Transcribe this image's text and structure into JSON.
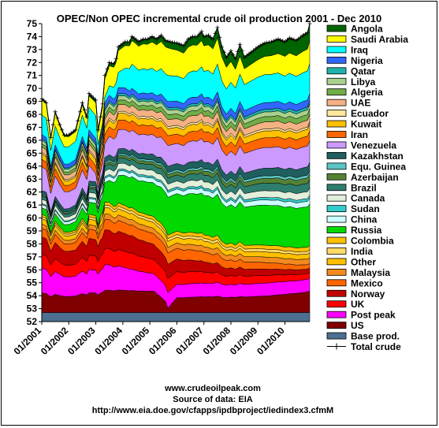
{
  "chart_data": {
    "type": "area",
    "title": "OPEC/Non OPEC incremental crude oil production 2001 - Dec 2010",
    "ylim": [
      52,
      75
    ],
    "yticks": [
      52,
      53,
      54,
      55,
      56,
      57,
      58,
      59,
      60,
      61,
      62,
      63,
      64,
      65,
      66,
      67,
      68,
      69,
      70,
      71,
      72,
      73,
      74,
      75
    ],
    "xticks": [
      "01/2001",
      "01/2002",
      "01/2003",
      "01/2004",
      "01/2005",
      "01/2006",
      "01/2007",
      "01/2008",
      "01/2009",
      "01/2010"
    ],
    "n_months": 120,
    "grid": false,
    "legend_position": "right",
    "total_crude": {
      "name": "Total crude",
      "color": "#000000",
      "anchors": [
        [
          0,
          69.2
        ],
        [
          2,
          68.9
        ],
        [
          4,
          66.2
        ],
        [
          6,
          68.2
        ],
        [
          8,
          67.2
        ],
        [
          10,
          66.4
        ],
        [
          12,
          66.4
        ],
        [
          15,
          66.8
        ],
        [
          18,
          68.9
        ],
        [
          20,
          67.8
        ],
        [
          21,
          69.6
        ],
        [
          24,
          69.1
        ],
        [
          25,
          66.8
        ],
        [
          27,
          68.8
        ],
        [
          28,
          71.0
        ],
        [
          30,
          72.0
        ],
        [
          32,
          71.9
        ],
        [
          33,
          72.3
        ],
        [
          34,
          73.2
        ],
        [
          37,
          73.6
        ],
        [
          39,
          73.6
        ],
        [
          40,
          74.0
        ],
        [
          41,
          73.9
        ],
        [
          43,
          73.6
        ],
        [
          45,
          73.8
        ],
        [
          47,
          73.8
        ],
        [
          49,
          74.0
        ],
        [
          51,
          73.8
        ],
        [
          53,
          74.1
        ],
        [
          55,
          73.7
        ],
        [
          57,
          73.6
        ],
        [
          60,
          73.5
        ],
        [
          63,
          73.3
        ],
        [
          65,
          73.8
        ],
        [
          67,
          74.0
        ],
        [
          69,
          74.0
        ],
        [
          70,
          74.2
        ],
        [
          71,
          74.4
        ],
        [
          72,
          74.0
        ],
        [
          74,
          74.1
        ],
        [
          76,
          73.8
        ],
        [
          78,
          74.7
        ],
        [
          80,
          73.2
        ],
        [
          82,
          72.4
        ],
        [
          84,
          72.9
        ],
        [
          86,
          72.3
        ],
        [
          88,
          73.4
        ],
        [
          90,
          72.4
        ],
        [
          93,
          72.8
        ],
        [
          96,
          73.2
        ],
        [
          99,
          73.5
        ],
        [
          102,
          73.6
        ],
        [
          105,
          73.8
        ],
        [
          108,
          73.6
        ],
        [
          110,
          73.9
        ],
        [
          113,
          73.7
        ],
        [
          116,
          74.1
        ],
        [
          118,
          74.3
        ],
        [
          119,
          75.0
        ]
      ]
    },
    "series": [
      {
        "name": "Base prod.",
        "color": "#4D6F91",
        "anchors": [
          [
            0,
            0.7
          ],
          [
            119,
            0.7
          ]
        ]
      },
      {
        "name": "US",
        "color": "#800000",
        "anchors": [
          [
            0,
            1.8
          ],
          [
            50,
            1.6
          ],
          [
            55,
            0.8
          ],
          [
            56,
            0.3
          ],
          [
            60,
            1.1
          ],
          [
            100,
            1.2
          ],
          [
            119,
            1.5
          ]
        ]
      },
      {
        "name": "Post peak",
        "color": "#FF00FF",
        "anchors": [
          [
            0,
            2.3
          ],
          [
            30,
            1.9
          ],
          [
            60,
            1.0
          ],
          [
            120,
            0.9
          ]
        ]
      },
      {
        "name": "UK",
        "color": "#FF0000",
        "anchors": [
          [
            0,
            1.3
          ],
          [
            40,
            1.2
          ],
          [
            80,
            0.7
          ],
          [
            120,
            0.4
          ]
        ]
      },
      {
        "name": "Norway",
        "color": "#C00000",
        "anchors": [
          [
            0,
            1.6
          ],
          [
            40,
            1.3
          ],
          [
            80,
            0.6
          ],
          [
            120,
            0.3
          ]
        ]
      },
      {
        "name": "Mexico",
        "color": "#FF6600",
        "anchors": [
          [
            0,
            0.8
          ],
          [
            60,
            0.8
          ],
          [
            120,
            0.3
          ]
        ]
      },
      {
        "name": "Malaysia",
        "color": "#F28A1E",
        "anchors": [
          [
            0,
            0.4
          ],
          [
            120,
            0.4
          ]
        ]
      },
      {
        "name": "Other",
        "color": "#FFC000",
        "anchors": [
          [
            0,
            0.5
          ],
          [
            120,
            0.35
          ]
        ]
      },
      {
        "name": "India",
        "color": "#FFD966",
        "anchors": [
          [
            0,
            0.2
          ],
          [
            120,
            0.2
          ]
        ]
      },
      {
        "name": "Colombia",
        "color": "#FFC000",
        "anchors": [
          [
            0,
            0.2
          ],
          [
            120,
            0.3
          ]
        ]
      },
      {
        "name": "Russia",
        "color": "#00D800",
        "anchors": [
          [
            0,
            0.6
          ],
          [
            24,
            1.1
          ],
          [
            36,
            2.2
          ],
          [
            60,
            2.8
          ],
          [
            90,
            2.9
          ],
          [
            120,
            2.9
          ]
        ]
      },
      {
        "name": "China",
        "color": "#CCFFFF",
        "anchors": [
          [
            0,
            0.3
          ],
          [
            120,
            0.4
          ]
        ]
      },
      {
        "name": "Sudan",
        "color": "#33CCCC",
        "anchors": [
          [
            0,
            0.1
          ],
          [
            120,
            0.2
          ]
        ]
      },
      {
        "name": "Canada",
        "color": "#E2EFDA",
        "anchors": [
          [
            0,
            0.4
          ],
          [
            120,
            0.5
          ]
        ]
      },
      {
        "name": "Brazil",
        "color": "#2E7D6E",
        "anchors": [
          [
            0,
            0.3
          ],
          [
            120,
            0.6
          ]
        ]
      },
      {
        "name": "Azerbaijan",
        "color": "#548235",
        "anchors": [
          [
            0,
            0.1
          ],
          [
            120,
            0.4
          ]
        ]
      },
      {
        "name": "Equ. Guinea",
        "color": "#5BC4C4",
        "anchors": [
          [
            0,
            0.1
          ],
          [
            120,
            0.2
          ]
        ]
      },
      {
        "name": "Kazakhstan",
        "color": "#1F5F5F",
        "anchors": [
          [
            0,
            0.3
          ],
          [
            120,
            0.6
          ]
        ]
      },
      {
        "name": "Venezuela",
        "color": "#CC99FF",
        "anchors": [
          [
            0,
            2.2
          ],
          [
            20,
            1.6
          ],
          [
            25,
            0.5
          ],
          [
            30,
            1.4
          ],
          [
            60,
            1.5
          ],
          [
            120,
            1.5
          ]
        ]
      },
      {
        "name": "Iran",
        "color": "#FF6600",
        "anchors": [
          [
            0,
            0.7
          ],
          [
            120,
            0.7
          ]
        ]
      },
      {
        "name": "Kuwait",
        "color": "#FFC000",
        "anchors": [
          [
            0,
            0.5
          ],
          [
            120,
            0.5
          ]
        ]
      },
      {
        "name": "Ecuador",
        "color": "#FFE699",
        "anchors": [
          [
            0,
            0.15
          ],
          [
            120,
            0.15
          ]
        ]
      },
      {
        "name": "UAE",
        "color": "#F4B183",
        "anchors": [
          [
            0,
            0.5
          ],
          [
            120,
            0.5
          ]
        ]
      },
      {
        "name": "Algeria",
        "color": "#70AD47",
        "anchors": [
          [
            0,
            0.3
          ],
          [
            120,
            0.4
          ]
        ]
      },
      {
        "name": "Libya",
        "color": "#A9D18E",
        "anchors": [
          [
            0,
            0.3
          ],
          [
            120,
            0.35
          ]
        ]
      },
      {
        "name": "Qatar",
        "color": "#20B2AA",
        "anchors": [
          [
            0,
            0.15
          ],
          [
            120,
            0.2
          ]
        ]
      },
      {
        "name": "Nigeria",
        "color": "#3366FF",
        "anchors": [
          [
            0,
            0.4
          ],
          [
            120,
            0.5
          ]
        ]
      },
      {
        "name": "Iraq",
        "color": "#00FFFF",
        "anchors": [
          [
            0,
            1.8
          ],
          [
            24,
            2.0
          ],
          [
            26,
            0.2
          ],
          [
            30,
            0.7
          ],
          [
            40,
            1.8
          ],
          [
            120,
            2.1
          ]
        ]
      },
      {
        "name": "Saudi Arabia",
        "color": "#FFFF00",
        "anchors": [
          [
            0,
            1.4
          ],
          [
            20,
            0.9
          ],
          [
            30,
            1.5
          ],
          [
            50,
            2.0
          ],
          [
            80,
            1.8
          ],
          [
            90,
            1.2
          ],
          [
            120,
            1.6
          ]
        ]
      },
      {
        "name": "Angola",
        "color": "#006400",
        "anchors": [
          [
            0,
            0.1
          ],
          [
            40,
            0.3
          ],
          [
            120,
            1.2
          ]
        ]
      }
    ],
    "legend_order": [
      "Angola",
      "Saudi Arabia",
      "Iraq",
      "Nigeria",
      "Qatar",
      "Libya",
      "Algeria",
      "UAE",
      "Ecuador",
      "Kuwait",
      "Iran",
      "Venezuela",
      "Kazakhstan",
      "Equ. Guinea",
      "Azerbaijan",
      "Brazil",
      "Canada",
      "Sudan",
      "China",
      "Russia",
      "Colombia",
      "India",
      "Other",
      "Malaysia",
      "Mexico",
      "Norway",
      "UK",
      "Post peak",
      "US",
      "Base prod.",
      "Total crude"
    ]
  },
  "footer": {
    "site": "www.crudeoilpeak.com",
    "source": "Source of data: EIA",
    "url": "http://www.eia.doe.gov/cfapps/ipdbproject/iedindex3.cfmM"
  }
}
